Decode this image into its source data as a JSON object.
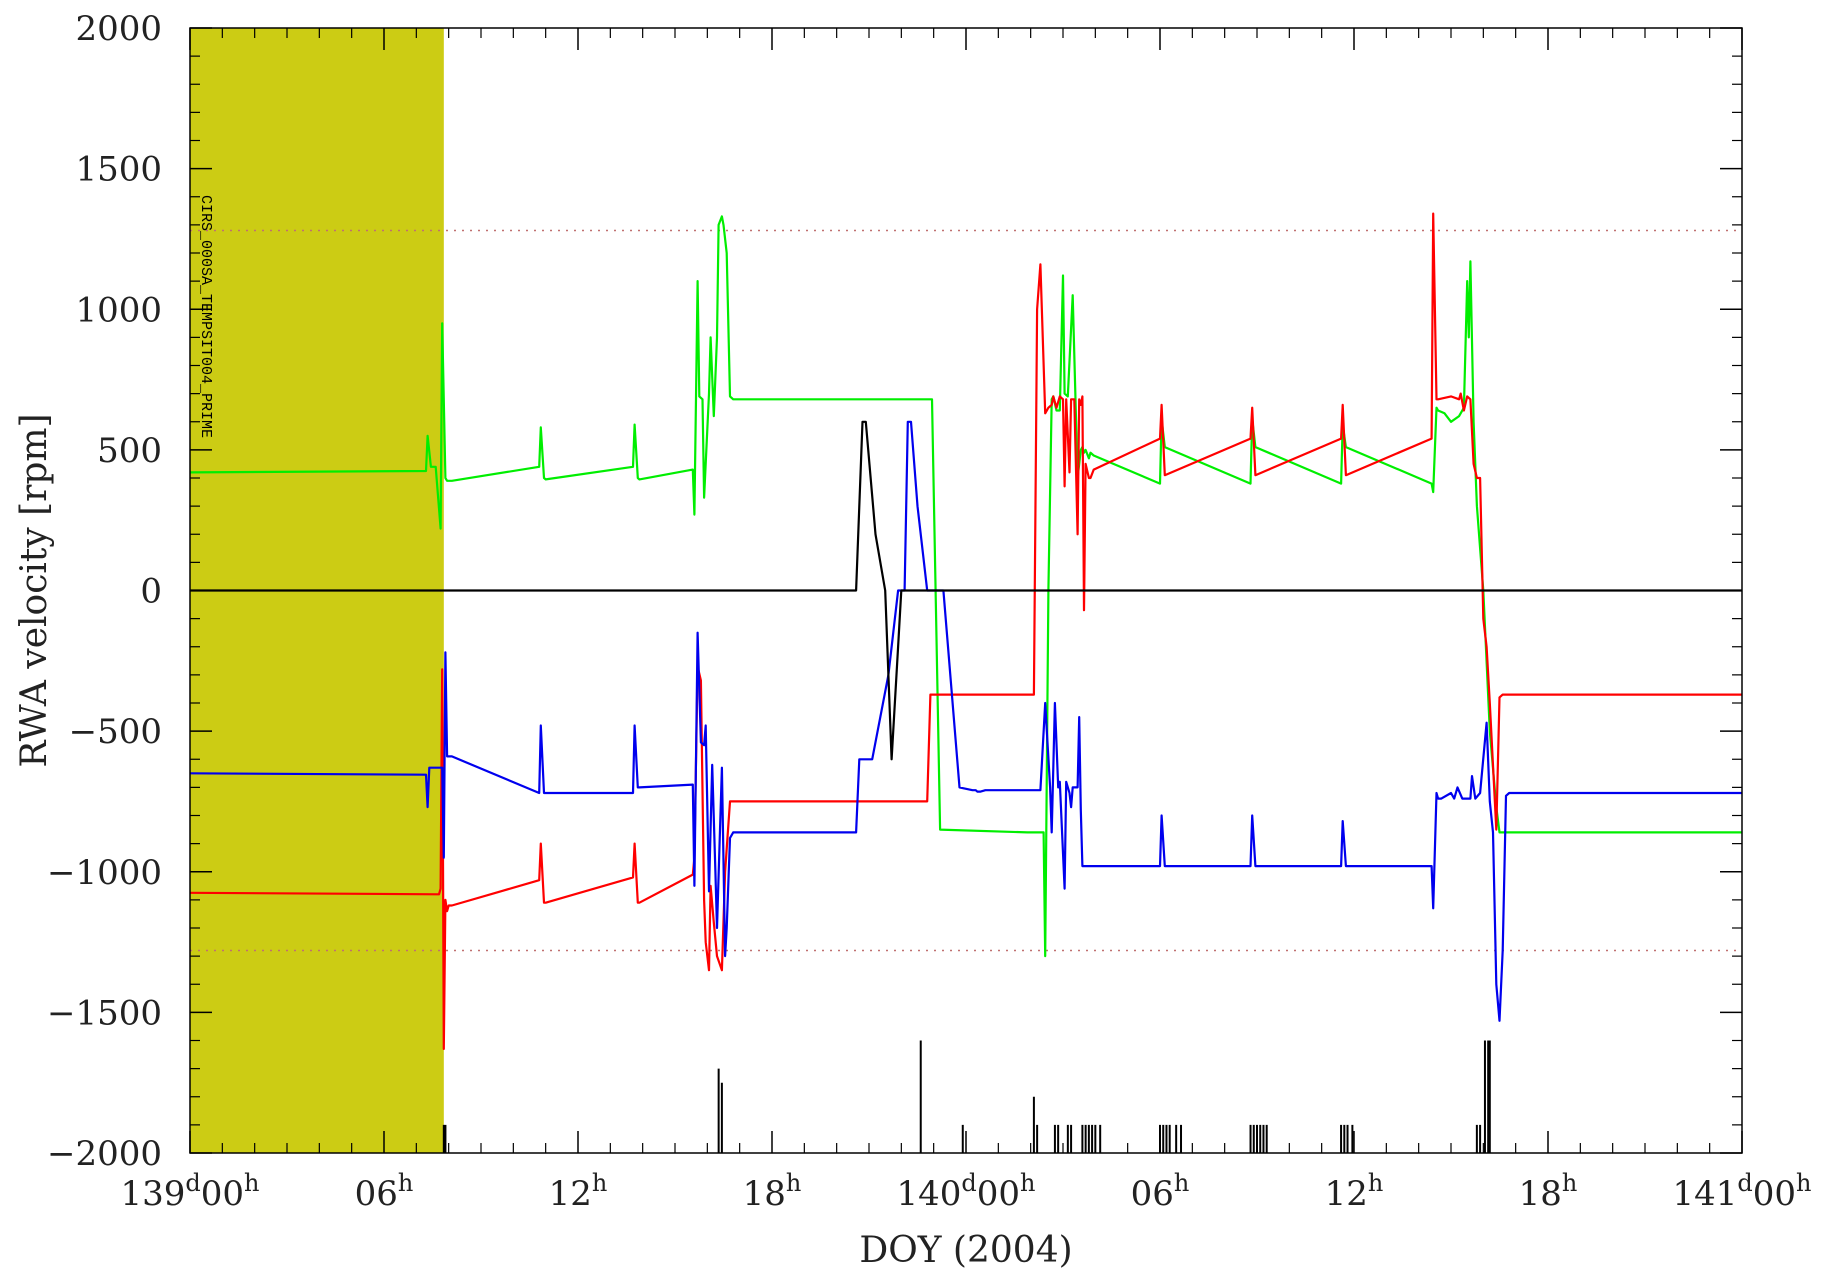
{
  "chart_data": {
    "type": "line",
    "title": "",
    "xlabel": "DOY (2004)",
    "ylabel": "RWA velocity [rpm]",
    "xlim": [
      0,
      48
    ],
    "ylim": [
      -2000,
      2000
    ],
    "y_ticks": [
      2000,
      1500,
      1000,
      500,
      0,
      -500,
      -1000,
      -1500,
      -2000
    ],
    "x_ticks": [
      {
        "x": 0,
        "day": "139",
        "hour": "00"
      },
      {
        "x": 6,
        "day": "",
        "hour": "06"
      },
      {
        "x": 12,
        "day": "",
        "hour": "12"
      },
      {
        "x": 18,
        "day": "",
        "hour": "18"
      },
      {
        "x": 24,
        "day": "140",
        "hour": "00"
      },
      {
        "x": 30,
        "day": "",
        "hour": "06"
      },
      {
        "x": 36,
        "day": "",
        "hour": "12"
      },
      {
        "x": 42,
        "day": "",
        "hour": "18"
      },
      {
        "x": 48,
        "day": "141",
        "hour": "00"
      }
    ],
    "tick_superscripts": {
      "day": "d",
      "hour": "h"
    },
    "limit_lines": [
      1280,
      -1280
    ],
    "shaded_region": {
      "x": [
        0,
        7.85
      ],
      "color": "#cccc14"
    },
    "annotation": "CIRS_000SA_TEMPSIT004_PRIME",
    "grid": false,
    "series": [
      {
        "color": "#00ee00",
        "x": [
          0,
          7.3,
          7.35,
          7.45,
          7.6,
          7.75,
          7.8,
          7.9,
          7.95,
          8.1,
          10.8,
          10.85,
          10.95,
          11.0,
          13.7,
          13.75,
          13.85,
          13.9,
          15.55,
          15.6,
          15.7,
          15.75,
          15.85,
          15.9,
          16.05,
          16.1,
          16.2,
          16.3,
          16.35,
          16.45,
          16.5,
          16.6,
          16.7,
          16.8,
          22.8,
          22.95,
          23.2,
          25.9,
          26.0,
          26.1,
          26.2,
          26.3,
          26.4,
          26.45,
          26.55,
          26.65,
          26.7,
          26.8,
          26.9,
          27.0,
          27.05,
          27.15,
          27.3,
          27.45,
          27.55,
          27.6,
          27.65,
          27.7,
          27.8,
          27.85,
          27.95,
          30.0,
          30.05,
          30.15,
          32.8,
          32.85,
          32.95,
          35.6,
          35.65,
          35.75,
          38.4,
          38.45,
          38.55,
          38.6,
          38.8,
          39.0,
          39.25,
          39.4,
          39.5,
          39.55,
          39.6,
          39.7,
          39.8,
          40.0,
          40.2,
          40.4,
          40.5,
          40.6,
          40.9,
          48
        ],
        "y": [
          420,
          425,
          550,
          440,
          440,
          220,
          950,
          400,
          390,
          390,
          440,
          580,
          400,
          395,
          440,
          590,
          400,
          395,
          430,
          270,
          1100,
          690,
          680,
          330,
          700,
          900,
          620,
          900,
          1300,
          1330,
          1300,
          1200,
          690,
          680,
          680,
          680,
          -850,
          -860,
          -860,
          -860,
          -860,
          -860,
          -860,
          -1300,
          0,
          680,
          690,
          640,
          640,
          1120,
          700,
          690,
          1050,
          400,
          500,
          510,
          490,
          500,
          470,
          490,
          480,
          380,
          610,
          510,
          380,
          610,
          510,
          380,
          590,
          510,
          380,
          350,
          650,
          640,
          630,
          600,
          620,
          650,
          1100,
          900,
          1170,
          600,
          300,
          0,
          -500,
          -770,
          -860,
          -860,
          -860,
          -860
        ]
      },
      {
        "color": "#ff0000",
        "x": [
          0,
          7.7,
          7.75,
          7.8,
          7.85,
          7.9,
          7.95,
          8.0,
          8.1,
          10.8,
          10.85,
          10.95,
          11.0,
          13.7,
          13.75,
          13.85,
          13.9,
          15.55,
          15.6,
          15.7,
          15.8,
          15.9,
          15.95,
          16.05,
          16.1,
          16.2,
          16.3,
          16.45,
          16.55,
          16.7,
          16.8,
          16.9,
          22.8,
          22.9,
          23.0,
          25.8,
          25.85,
          25.95,
          26.0,
          26.1,
          26.2,
          26.3,
          26.45,
          26.55,
          26.65,
          26.7,
          26.8,
          26.9,
          27.0,
          27.05,
          27.1,
          27.2,
          27.25,
          27.35,
          27.45,
          27.5,
          27.55,
          27.6,
          27.65,
          27.7,
          27.8,
          27.85,
          27.95,
          30.0,
          30.05,
          30.15,
          32.8,
          32.85,
          32.95,
          35.6,
          35.65,
          35.75,
          38.4,
          38.45,
          38.55,
          38.6,
          39.0,
          39.25,
          39.3,
          39.4,
          39.5,
          39.6,
          39.7,
          39.8,
          39.9,
          40.0,
          40.1,
          40.2,
          40.4,
          40.5,
          40.6,
          40.7,
          48
        ],
        "y": [
          -1075,
          -1080,
          -1060,
          -280,
          -1630,
          -1100,
          -1140,
          -1120,
          -1120,
          -1030,
          -900,
          -1110,
          -1110,
          -1020,
          -900,
          -1110,
          -1110,
          -1010,
          -950,
          -270,
          -320,
          -1100,
          -1250,
          -1350,
          -1050,
          -1180,
          -1300,
          -1350,
          -1000,
          -750,
          -750,
          -750,
          -750,
          -370,
          -370,
          -370,
          -370,
          -370,
          -370,
          -370,
          1000,
          1160,
          630,
          650,
          660,
          690,
          650,
          690,
          680,
          370,
          680,
          420,
          680,
          680,
          200,
          680,
          660,
          690,
          -70,
          450,
          400,
          400,
          430,
          540,
          660,
          410,
          540,
          650,
          410,
          540,
          660,
          410,
          540,
          1340,
          680,
          680,
          690,
          680,
          700,
          640,
          690,
          680,
          450,
          400,
          400,
          -100,
          -200,
          -400,
          -850,
          -380,
          -370,
          -370,
          -370
        ]
      },
      {
        "color": "#0000ee",
        "x": [
          0,
          7.3,
          7.35,
          7.4,
          7.8,
          7.85,
          7.9,
          7.95,
          8.1,
          10.8,
          10.85,
          10.95,
          11.0,
          13.7,
          13.75,
          13.85,
          13.9,
          15.55,
          15.6,
          15.7,
          15.8,
          15.9,
          15.95,
          16.05,
          16.15,
          16.25,
          16.3,
          16.45,
          16.55,
          16.6,
          16.7,
          16.8,
          16.9,
          20.6,
          20.7,
          21.1,
          21.6,
          21.9,
          22.0,
          22.1,
          22.2,
          22.3,
          22.5,
          22.8,
          23.3,
          23.8,
          24.2,
          24.3,
          24.35,
          24.45,
          24.6,
          25.0,
          25.5,
          25.9,
          26.0,
          26.1,
          26.2,
          26.3,
          26.45,
          26.6,
          26.65,
          26.75,
          26.85,
          26.9,
          27.05,
          27.1,
          27.2,
          27.25,
          27.3,
          27.45,
          27.5,
          27.55,
          27.6,
          27.65,
          27.75,
          27.8,
          27.9,
          28.0,
          30.0,
          30.05,
          30.15,
          32.8,
          32.85,
          32.95,
          35.6,
          35.65,
          35.75,
          38.4,
          38.45,
          38.55,
          38.6,
          38.7,
          39.0,
          39.1,
          39.2,
          39.35,
          39.6,
          39.65,
          39.75,
          39.9,
          40.1,
          40.2,
          40.3,
          40.4,
          40.5,
          40.6,
          40.7,
          40.8,
          41.0,
          48
        ],
        "y": [
          -650,
          -655,
          -770,
          -630,
          -630,
          -950,
          -220,
          -590,
          -590,
          -720,
          -480,
          -720,
          -720,
          -720,
          -480,
          -700,
          -700,
          -690,
          -1050,
          -150,
          -540,
          -550,
          -480,
          -1070,
          -620,
          -1000,
          -1200,
          -630,
          -1300,
          -1200,
          -880,
          -860,
          -860,
          -860,
          -600,
          -600,
          -300,
          0,
          0,
          0,
          600,
          600,
          300,
          0,
          0,
          -700,
          -710,
          -710,
          -715,
          -715,
          -710,
          -710,
          -710,
          -710,
          -710,
          -710,
          -710,
          -710,
          -400,
          -700,
          -860,
          -400,
          -700,
          -680,
          -1060,
          -680,
          -720,
          -770,
          -700,
          -700,
          -450,
          -780,
          -980,
          -980,
          -980,
          -980,
          -980,
          -980,
          -980,
          -800,
          -980,
          -980,
          -800,
          -980,
          -980,
          -820,
          -980,
          -980,
          -1130,
          -720,
          -740,
          -740,
          -720,
          -740,
          -700,
          -740,
          -740,
          -660,
          -740,
          -720,
          -470,
          -750,
          -860,
          -1400,
          -1530,
          -1280,
          -730,
          -720,
          -720,
          -720
        ]
      },
      {
        "color": "#000000",
        "x": [
          0,
          20.6,
          20.8,
          20.9,
          21.2,
          21.5,
          21.7,
          21.9,
          22.0,
          22.2,
          22.3,
          22.6,
          23.0,
          48
        ],
        "y": [
          0,
          0,
          600,
          600,
          200,
          0,
          -600,
          -200,
          0,
          0,
          0,
          0,
          0,
          0
        ]
      }
    ],
    "event_markers": [
      {
        "x": 7.85,
        "h": 100
      },
      {
        "x": 7.9,
        "h": 100
      },
      {
        "x": 16.35,
        "h": 300
      },
      {
        "x": 16.45,
        "h": 250
      },
      {
        "x": 22.6,
        "h": 400
      },
      {
        "x": 23.9,
        "h": 100
      },
      {
        "x": 26.1,
        "h": 200
      },
      {
        "x": 26.2,
        "h": 100
      },
      {
        "x": 26.75,
        "h": 100
      },
      {
        "x": 26.85,
        "h": 100
      },
      {
        "x": 27.15,
        "h": 100
      },
      {
        "x": 27.25,
        "h": 100
      },
      {
        "x": 27.6,
        "h": 100
      },
      {
        "x": 27.7,
        "h": 100
      },
      {
        "x": 27.8,
        "h": 100
      },
      {
        "x": 27.9,
        "h": 100
      },
      {
        "x": 28.0,
        "h": 100
      },
      {
        "x": 28.15,
        "h": 100
      },
      {
        "x": 30.0,
        "h": 100
      },
      {
        "x": 30.1,
        "h": 100
      },
      {
        "x": 30.2,
        "h": 100
      },
      {
        "x": 30.3,
        "h": 100
      },
      {
        "x": 30.5,
        "h": 100
      },
      {
        "x": 30.65,
        "h": 100
      },
      {
        "x": 32.8,
        "h": 100
      },
      {
        "x": 32.9,
        "h": 100
      },
      {
        "x": 33.0,
        "h": 100
      },
      {
        "x": 33.1,
        "h": 100
      },
      {
        "x": 33.2,
        "h": 100
      },
      {
        "x": 33.3,
        "h": 100
      },
      {
        "x": 35.6,
        "h": 100
      },
      {
        "x": 35.7,
        "h": 100
      },
      {
        "x": 35.8,
        "h": 100
      },
      {
        "x": 35.95,
        "h": 100
      },
      {
        "x": 39.8,
        "h": 100
      },
      {
        "x": 39.9,
        "h": 100
      },
      {
        "x": 40.05,
        "h": 400
      },
      {
        "x": 40.15,
        "h": 400
      },
      {
        "x": 40.2,
        "h": 400
      }
    ]
  }
}
